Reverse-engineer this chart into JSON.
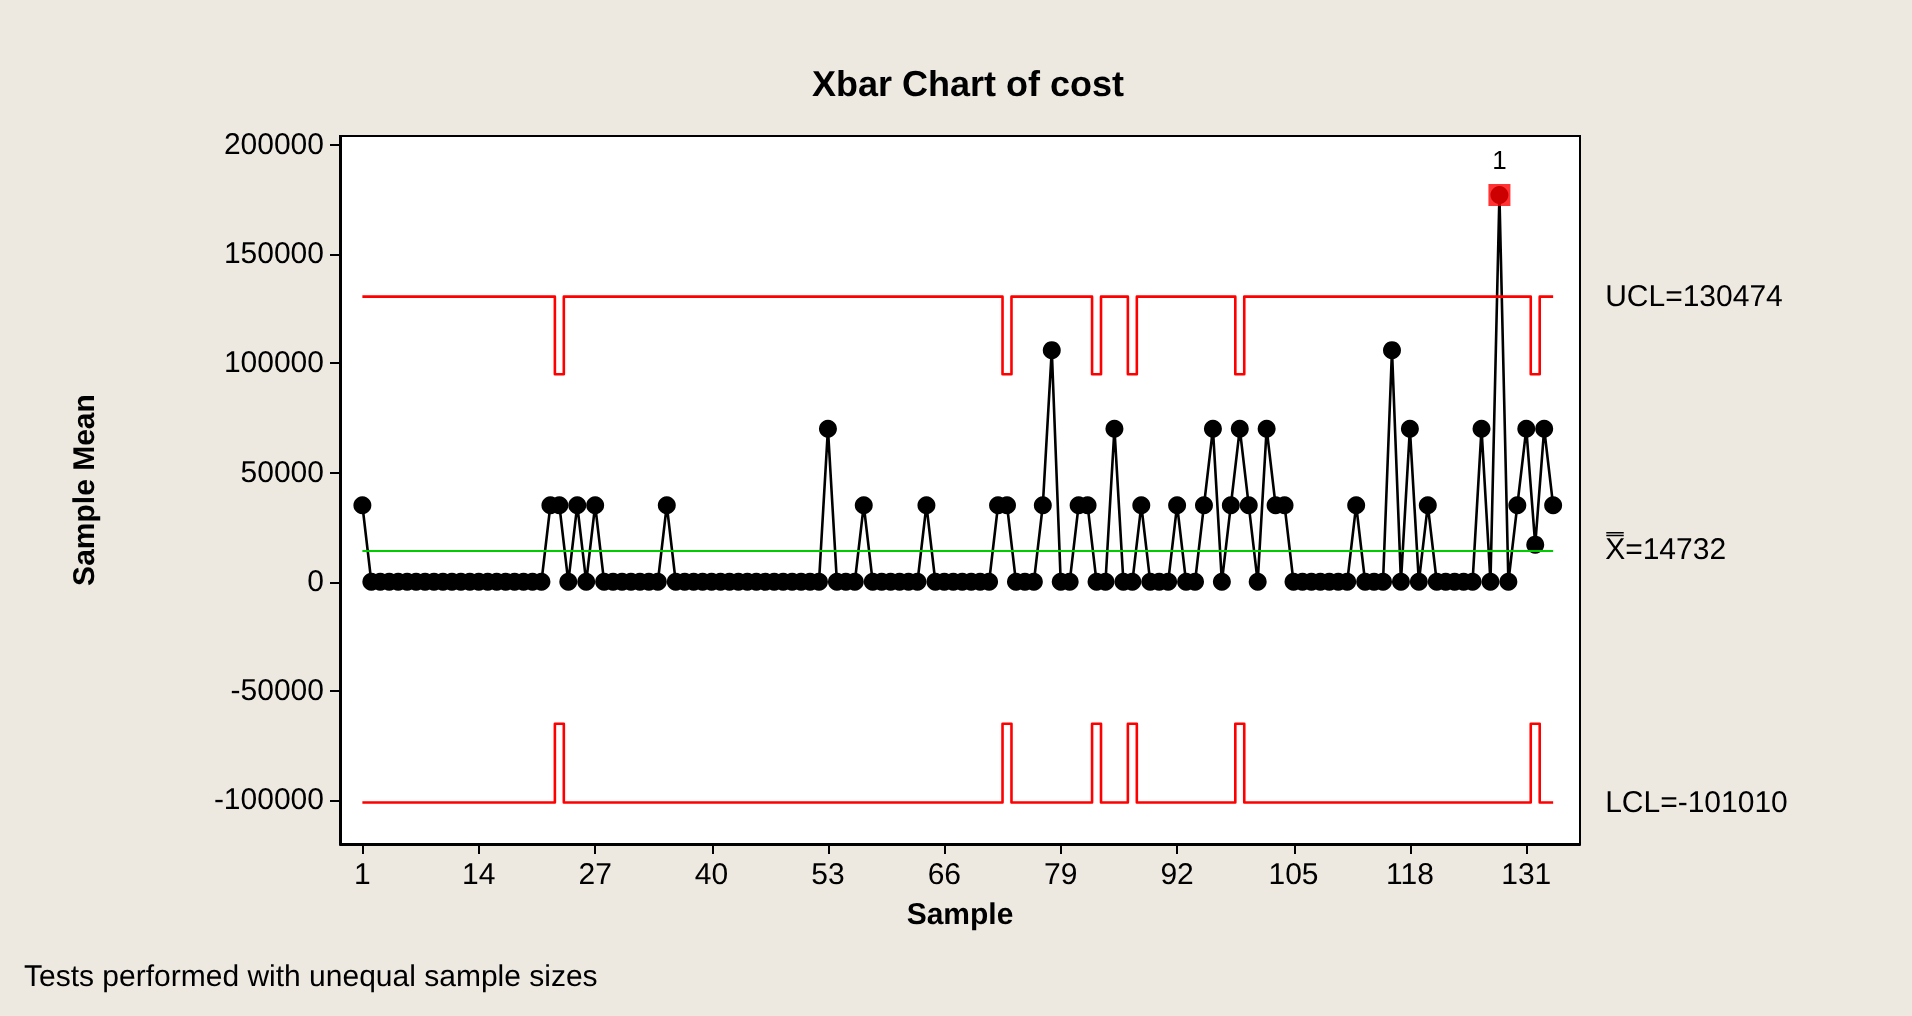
{
  "chart_data": {
    "type": "line",
    "title": "Xbar Chart of cost",
    "xlabel": "Sample",
    "ylabel": "Sample Mean",
    "x": [
      1,
      2,
      3,
      4,
      5,
      6,
      7,
      8,
      9,
      10,
      11,
      12,
      13,
      14,
      15,
      16,
      17,
      18,
      19,
      20,
      21,
      22,
      23,
      24,
      25,
      26,
      27,
      28,
      29,
      30,
      31,
      32,
      33,
      34,
      35,
      36,
      37,
      38,
      39,
      40,
      41,
      42,
      43,
      44,
      45,
      46,
      47,
      48,
      49,
      50,
      51,
      52,
      53,
      54,
      55,
      56,
      57,
      58,
      59,
      60,
      61,
      62,
      63,
      64,
      65,
      66,
      67,
      68,
      69,
      70,
      71,
      72,
      73,
      74,
      75,
      76,
      77,
      78,
      79,
      80,
      81,
      82,
      83,
      84,
      85,
      86,
      87,
      88,
      89,
      90,
      91,
      92,
      93,
      94,
      95,
      96,
      97,
      98,
      99,
      100,
      101,
      102,
      103,
      104,
      105,
      106,
      107,
      108,
      109,
      110,
      111,
      112,
      113,
      114,
      115,
      116,
      117,
      118,
      119,
      120,
      121,
      122,
      123,
      124,
      125,
      126,
      127,
      128,
      129,
      130,
      131,
      132,
      133,
      134
    ],
    "series": [
      {
        "color": "#000000",
        "values": [
          35000,
          0,
          0,
          0,
          0,
          0,
          0,
          0,
          0,
          0,
          0,
          0,
          0,
          0,
          0,
          0,
          0,
          0,
          0,
          0,
          0,
          35000,
          35000,
          0,
          35000,
          0,
          35000,
          0,
          0,
          0,
          0,
          0,
          0,
          0,
          35000,
          0,
          0,
          0,
          0,
          0,
          0,
          0,
          0,
          0,
          0,
          0,
          0,
          0,
          0,
          0,
          0,
          0,
          70000,
          0,
          0,
          0,
          35000,
          0,
          0,
          0,
          0,
          0,
          0,
          35000,
          0,
          0,
          0,
          0,
          0,
          0,
          0,
          35000,
          35000,
          0,
          0,
          0,
          35000,
          106000,
          0,
          0,
          35000,
          35000,
          0,
          0,
          70000,
          0,
          0,
          35000,
          0,
          0,
          0,
          35000,
          0,
          0,
          35000,
          70000,
          0,
          35000,
          70000,
          35000,
          0,
          70000,
          35000,
          35000,
          0,
          0,
          0,
          0,
          0,
          0,
          0,
          35000,
          0,
          0,
          0,
          106000,
          0,
          70000,
          0,
          35000,
          0,
          0,
          0,
          0,
          0,
          70000,
          0,
          177000,
          0,
          35000,
          70000,
          17000,
          70000,
          35000
        ]
      },
      {
        "name": "UCL=130474",
        "type": "step",
        "color": "#ff0000",
        "marker": "none",
        "values": [
          130474,
          130474,
          130474,
          130474,
          130474,
          130474,
          130474,
          130474,
          130474,
          130474,
          130474,
          130474,
          130474,
          130474,
          130474,
          130474,
          130474,
          130474,
          130474,
          130474,
          130474,
          130474,
          95000,
          130474,
          130474,
          130474,
          130474,
          130474,
          130474,
          130474,
          130474,
          130474,
          130474,
          130474,
          130474,
          130474,
          130474,
          130474,
          130474,
          130474,
          130474,
          130474,
          130474,
          130474,
          130474,
          130474,
          130474,
          130474,
          130474,
          130474,
          130474,
          130474,
          130474,
          130474,
          130474,
          130474,
          130474,
          130474,
          130474,
          130474,
          130474,
          130474,
          130474,
          130474,
          130474,
          130474,
          130474,
          130474,
          130474,
          130474,
          130474,
          130474,
          95000,
          130474,
          130474,
          130474,
          130474,
          130474,
          130474,
          130474,
          130474,
          130474,
          95000,
          130474,
          130474,
          130474,
          95000,
          130474,
          130474,
          130474,
          130474,
          130474,
          130474,
          130474,
          130474,
          130474,
          130474,
          130474,
          95000,
          130474,
          130474,
          130474,
          130474,
          130474,
          130474,
          130474,
          130474,
          130474,
          130474,
          130474,
          130474,
          130474,
          130474,
          130474,
          130474,
          130474,
          130474,
          130474,
          130474,
          130474,
          130474,
          130474,
          130474,
          130474,
          130474,
          130474,
          130474,
          130474,
          130474,
          130474,
          130474,
          95000,
          130474,
          130474
        ]
      },
      {
        "name": "LCL=-101010",
        "type": "step",
        "color": "#ff0000",
        "marker": "none",
        "values": [
          -101010,
          -101010,
          -101010,
          -101010,
          -101010,
          -101010,
          -101010,
          -101010,
          -101010,
          -101010,
          -101010,
          -101010,
          -101010,
          -101010,
          -101010,
          -101010,
          -101010,
          -101010,
          -101010,
          -101010,
          -101010,
          -101010,
          -65000,
          -101010,
          -101010,
          -101010,
          -101010,
          -101010,
          -101010,
          -101010,
          -101010,
          -101010,
          -101010,
          -101010,
          -101010,
          -101010,
          -101010,
          -101010,
          -101010,
          -101010,
          -101010,
          -101010,
          -101010,
          -101010,
          -101010,
          -101010,
          -101010,
          -101010,
          -101010,
          -101010,
          -101010,
          -101010,
          -101010,
          -101010,
          -101010,
          -101010,
          -101010,
          -101010,
          -101010,
          -101010,
          -101010,
          -101010,
          -101010,
          -101010,
          -101010,
          -101010,
          -101010,
          -101010,
          -101010,
          -101010,
          -101010,
          -101010,
          -65000,
          -101010,
          -101010,
          -101010,
          -101010,
          -101010,
          -101010,
          -101010,
          -101010,
          -101010,
          -65000,
          -101010,
          -101010,
          -101010,
          -65000,
          -101010,
          -101010,
          -101010,
          -101010,
          -101010,
          -101010,
          -101010,
          -101010,
          -101010,
          -101010,
          -101010,
          -65000,
          -101010,
          -101010,
          -101010,
          -101010,
          -101010,
          -101010,
          -101010,
          -101010,
          -101010,
          -101010,
          -101010,
          -101010,
          -101010,
          -101010,
          -101010,
          -101010,
          -101010,
          -101010,
          -101010,
          -101010,
          -101010,
          -101010,
          -101010,
          -101010,
          -101010,
          -101010,
          -101010,
          -101010,
          -101010,
          -101010,
          -101010,
          -101010,
          -65000,
          -101010,
          -101010
        ]
      },
      {
        "type": "scatter",
        "color": "#ff0000",
        "marker": "square",
        "x": [
          128
        ],
        "values": [
          177000
        ]
      }
    ],
    "ref_lines": [
      {
        "axis": "y",
        "value": 14732,
        "label": "X̿=14732",
        "color": "#00cc00"
      }
    ],
    "annotations": [
      {
        "text": "1",
        "x": 128,
        "y": 177000
      },
      "Tests performed with unequal sample sizes"
    ],
    "xlim": [
      -1.5,
      137
    ],
    "xticks": [
      1,
      14,
      27,
      40,
      53,
      66,
      79,
      92,
      105,
      118,
      131
    ],
    "ylim": [
      -120000,
      204000
    ],
    "yticks": [
      -100000,
      -50000,
      0,
      50000,
      100000,
      150000,
      200000
    ],
    "grid": false,
    "legend": false,
    "marker": "circle",
    "line_style": "solid"
  }
}
